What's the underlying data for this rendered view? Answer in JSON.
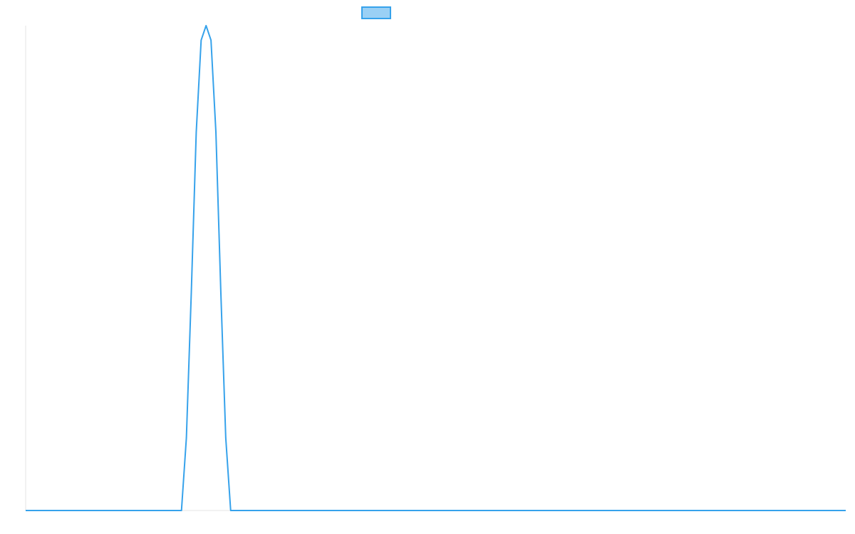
{
  "chart_data": {
    "type": "line",
    "title": "",
    "xlabel": "",
    "ylabel": "",
    "grid": false,
    "legend": {
      "placement": "top-center",
      "entries": [
        {
          "label": "",
          "color": "#36a2eb",
          "fill": "#9ad0f5"
        }
      ]
    },
    "xlim": [
      0,
      100
    ],
    "ylim": [
      0,
      1
    ],
    "series": [
      {
        "color": "#36a2eb",
        "x": [
          0,
          19.0,
          19.6,
          20.2,
          20.8,
          21.4,
          22.0,
          22.6,
          23.2,
          23.8,
          24.4,
          25.0,
          26.5,
          100
        ],
        "y": [
          0,
          0,
          0.15,
          0.45,
          0.78,
          0.97,
          1.0,
          0.97,
          0.78,
          0.45,
          0.15,
          0,
          0,
          0
        ]
      }
    ]
  }
}
